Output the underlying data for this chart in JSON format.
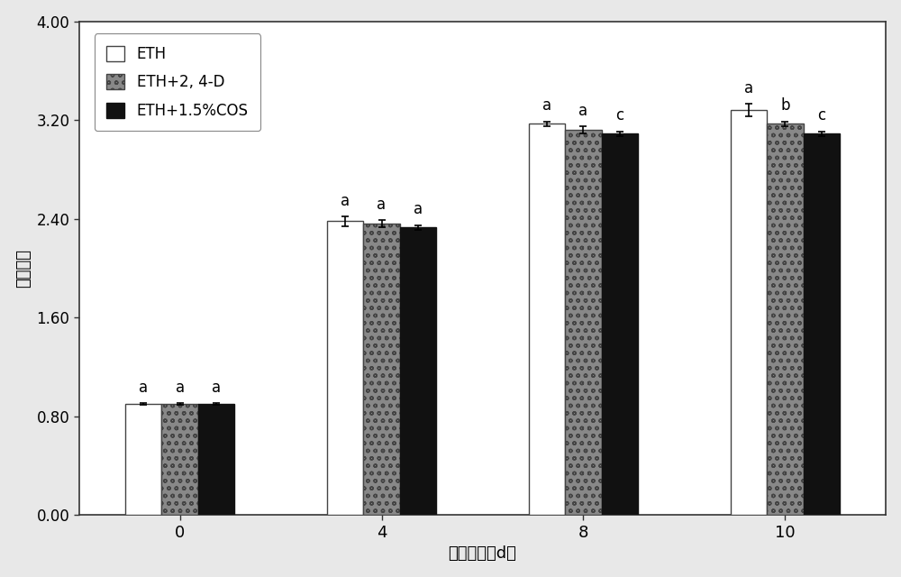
{
  "groups": [
    0,
    4,
    8,
    10
  ],
  "series": [
    {
      "label": "ETH",
      "values": [
        0.9,
        2.38,
        3.17,
        3.28
      ],
      "errors": [
        0.01,
        0.04,
        0.02,
        0.05
      ],
      "facecolor": "white",
      "edgecolor": "#444444",
      "linewidth": 1.0
    },
    {
      "label": "ETH+2, 4-D",
      "values": [
        0.9,
        2.36,
        3.12,
        3.17
      ],
      "errors": [
        0.01,
        0.03,
        0.03,
        0.02
      ],
      "facecolor": "#888888",
      "edgecolor": "#444444",
      "linewidth": 1.0
    },
    {
      "label": "ETH+1.5%COS",
      "values": [
        0.9,
        2.33,
        3.09,
        3.09
      ],
      "errors": [
        0.01,
        0.02,
        0.02,
        0.02
      ],
      "facecolor": "#111111",
      "edgecolor": "#111111",
      "linewidth": 1.0
    }
  ],
  "significance": {
    "0": [
      "a",
      "a",
      "a"
    ],
    "4": [
      "a",
      "a",
      "a"
    ],
    "8": [
      "a",
      "a",
      "c"
    ],
    "10": [
      "a",
      "b",
      "c"
    ]
  },
  "ylim": [
    0.0,
    4.0
  ],
  "yticks": [
    0.0,
    0.8,
    1.6,
    2.4,
    3.2,
    4.0
  ],
  "ytick_labels": [
    "0.00",
    "0.80",
    "1.60",
    "2.40",
    "3.20",
    "4.00"
  ],
  "xlabel": "贯藏时间（d）",
  "ylabel": "病害指数",
  "xtick_labels": [
    "0",
    "4",
    "8",
    "10"
  ],
  "bar_width": 0.18,
  "group_positions": [
    0,
    1,
    2,
    3
  ],
  "background_color": "#e8e8e8",
  "plot_bg": "white"
}
